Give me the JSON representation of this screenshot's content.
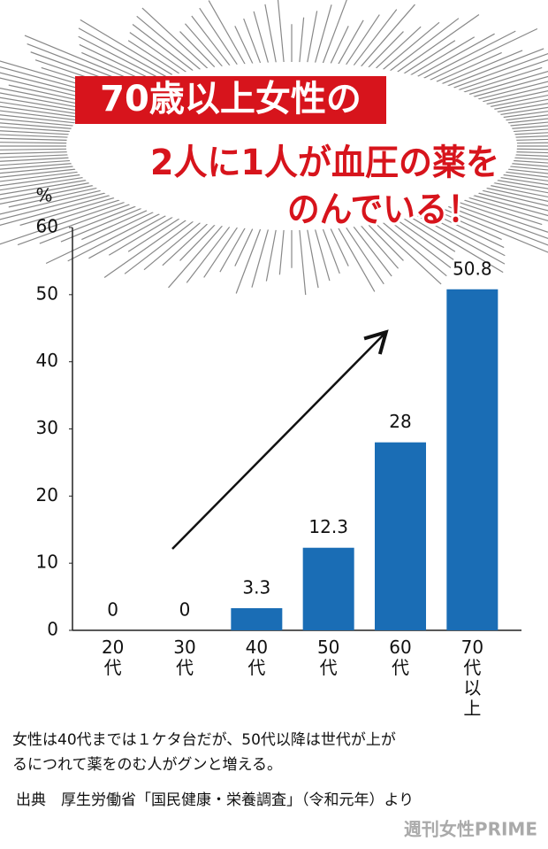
{
  "chart_data": {
    "type": "bar",
    "title": [
      "70歳以上女性の",
      "2人に1人が血圧の薬を",
      "のんでいる！"
    ],
    "y_label": "%",
    "categories": [
      "20代",
      "30代",
      "40代",
      "50代",
      "60代",
      "70代以上"
    ],
    "values": [
      0,
      0,
      3.3,
      12.3,
      28,
      50.8
    ],
    "color": "#1a6db5",
    "ylim": [
      0,
      60
    ],
    "yticks": [
      0,
      10,
      20,
      30,
      40,
      50,
      60
    ],
    "caption": [
      "女性は40代までは１ケタ台だが、50代以降は世代が上が",
      "るにつれて薬をのむ人がグンと増える。"
    ],
    "source": "出典　厚生労働省「国民健康・栄養調査」（令和元年）より",
    "credit": "週刊女性PRIME"
  }
}
